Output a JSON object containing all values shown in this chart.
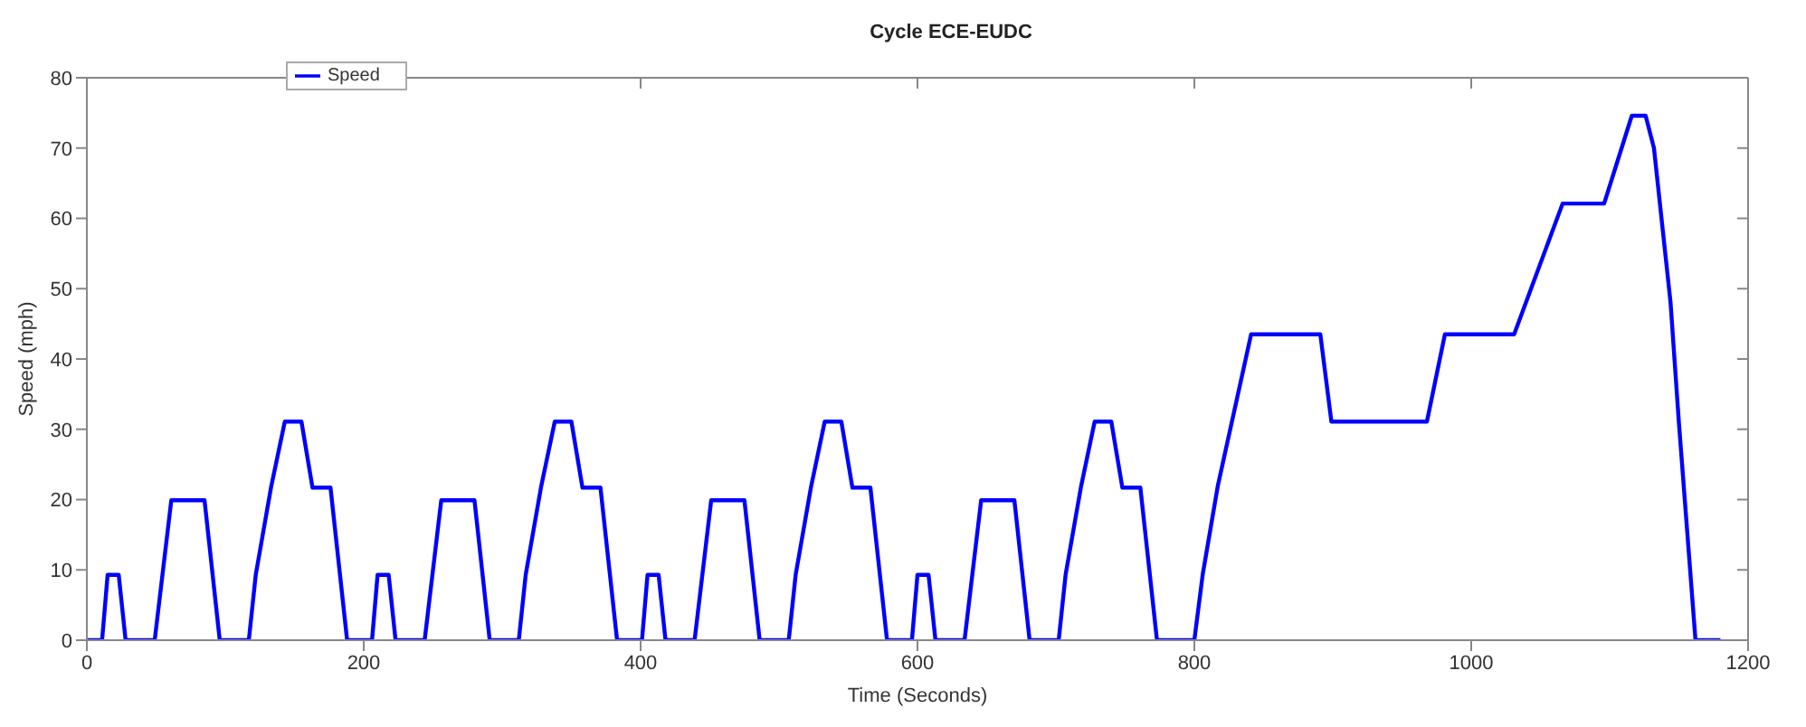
{
  "chart_data": {
    "type": "line",
    "title": "Cycle ECE-EUDC",
    "xlabel": "Time (Seconds)",
    "ylabel": "Speed (mph)",
    "x": [
      0,
      11,
      15,
      23,
      28,
      49,
      61,
      85,
      96,
      117,
      122,
      133,
      143,
      155,
      163,
      176,
      188,
      195,
      206,
      210,
      218,
      223,
      244,
      256,
      280,
      291,
      312,
      317,
      328,
      338,
      350,
      358,
      371,
      383,
      390,
      401,
      405,
      413,
      418,
      439,
      451,
      475,
      486,
      507,
      512,
      523,
      533,
      545,
      553,
      566,
      578,
      585,
      596,
      600,
      608,
      613,
      634,
      646,
      670,
      681,
      702,
      707,
      718,
      728,
      740,
      748,
      761,
      773,
      780,
      800,
      806,
      817,
      841,
      891,
      899,
      968,
      981,
      1031,
      1066,
      1096,
      1116,
      1126,
      1132,
      1144,
      1150,
      1162,
      1180
    ],
    "series": [
      {
        "name": "Speed",
        "color": "#0000ff",
        "values": [
          0,
          0,
          9.3,
          9.3,
          0,
          0,
          19.9,
          19.9,
          0,
          0,
          9.3,
          21.7,
          31.1,
          31.1,
          21.7,
          21.7,
          0,
          0,
          0,
          9.3,
          9.3,
          0,
          0,
          19.9,
          19.9,
          0,
          0,
          9.3,
          21.7,
          31.1,
          31.1,
          21.7,
          21.7,
          0,
          0,
          0,
          9.3,
          9.3,
          0,
          0,
          19.9,
          19.9,
          0,
          0,
          9.3,
          21.7,
          31.1,
          31.1,
          21.7,
          21.7,
          0,
          0,
          0,
          9.3,
          9.3,
          0,
          0,
          19.9,
          19.9,
          0,
          0,
          9.3,
          21.7,
          31.1,
          31.1,
          21.7,
          21.7,
          0,
          0,
          0,
          9.3,
          22,
          43.5,
          43.5,
          31.1,
          31.1,
          43.5,
          43.5,
          62.1,
          62.1,
          74.6,
          74.6,
          70,
          48,
          31,
          0,
          0
        ]
      }
    ],
    "xlim": [
      0,
      1200
    ],
    "xticks": [
      0,
      200,
      400,
      600,
      800,
      1000,
      1200
    ],
    "ylim": [
      0,
      80
    ],
    "yticks": [
      0,
      10,
      20,
      30,
      40,
      50,
      60,
      70,
      80
    ],
    "grid": false,
    "legend": "top left",
    "line_style": "solid"
  }
}
